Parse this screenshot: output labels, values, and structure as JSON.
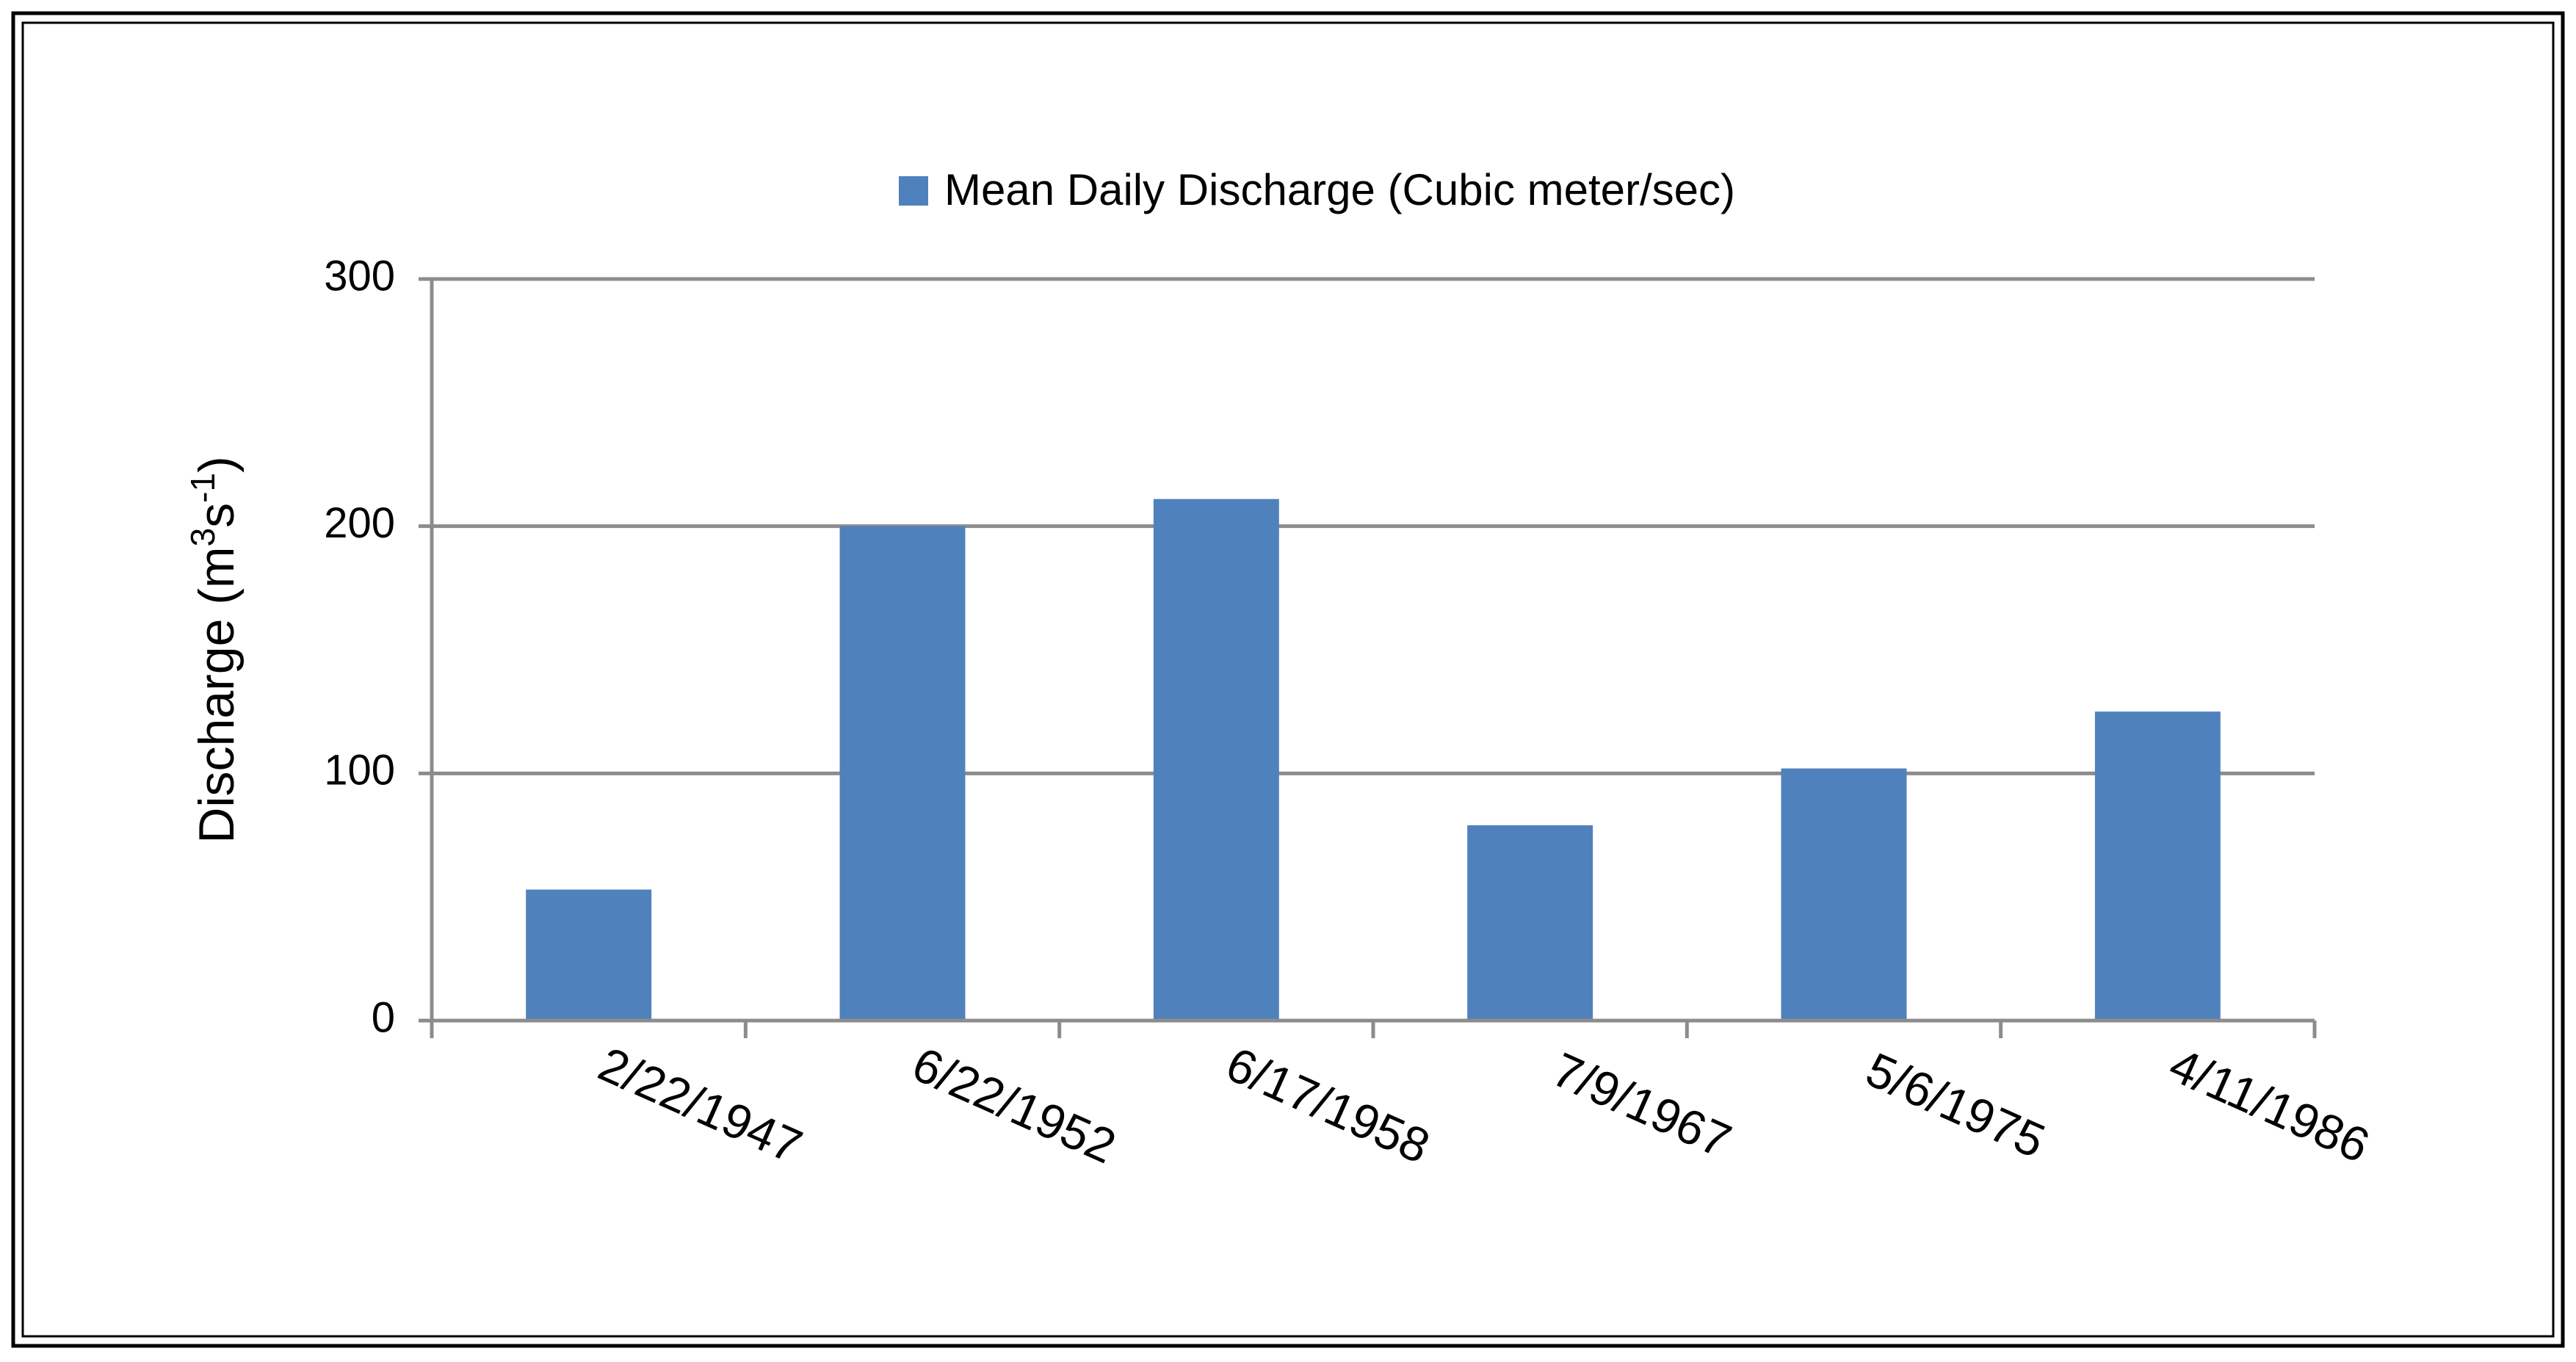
{
  "chart_data": {
    "type": "bar",
    "legend": {
      "label": "Mean Daily Discharge (Cubic meter/sec)",
      "color": "#4f81bd",
      "position": "top"
    },
    "ylabel": {
      "prefix": "Discharge (m",
      "sup1": "3",
      "middle": "s",
      "sup2": "-1",
      "suffix": ")"
    },
    "ylim": [
      0,
      300
    ],
    "yticks": [
      "0",
      "100",
      "200",
      "300"
    ],
    "grid": true,
    "categories": [
      "2/22/1947",
      "6/22/1952",
      "6/17/1958",
      "7/9/1967",
      "5/6/1975",
      "4/11/1986"
    ],
    "series": [
      {
        "values": [
          53,
          200,
          211,
          79,
          102,
          125
        ]
      }
    ]
  }
}
